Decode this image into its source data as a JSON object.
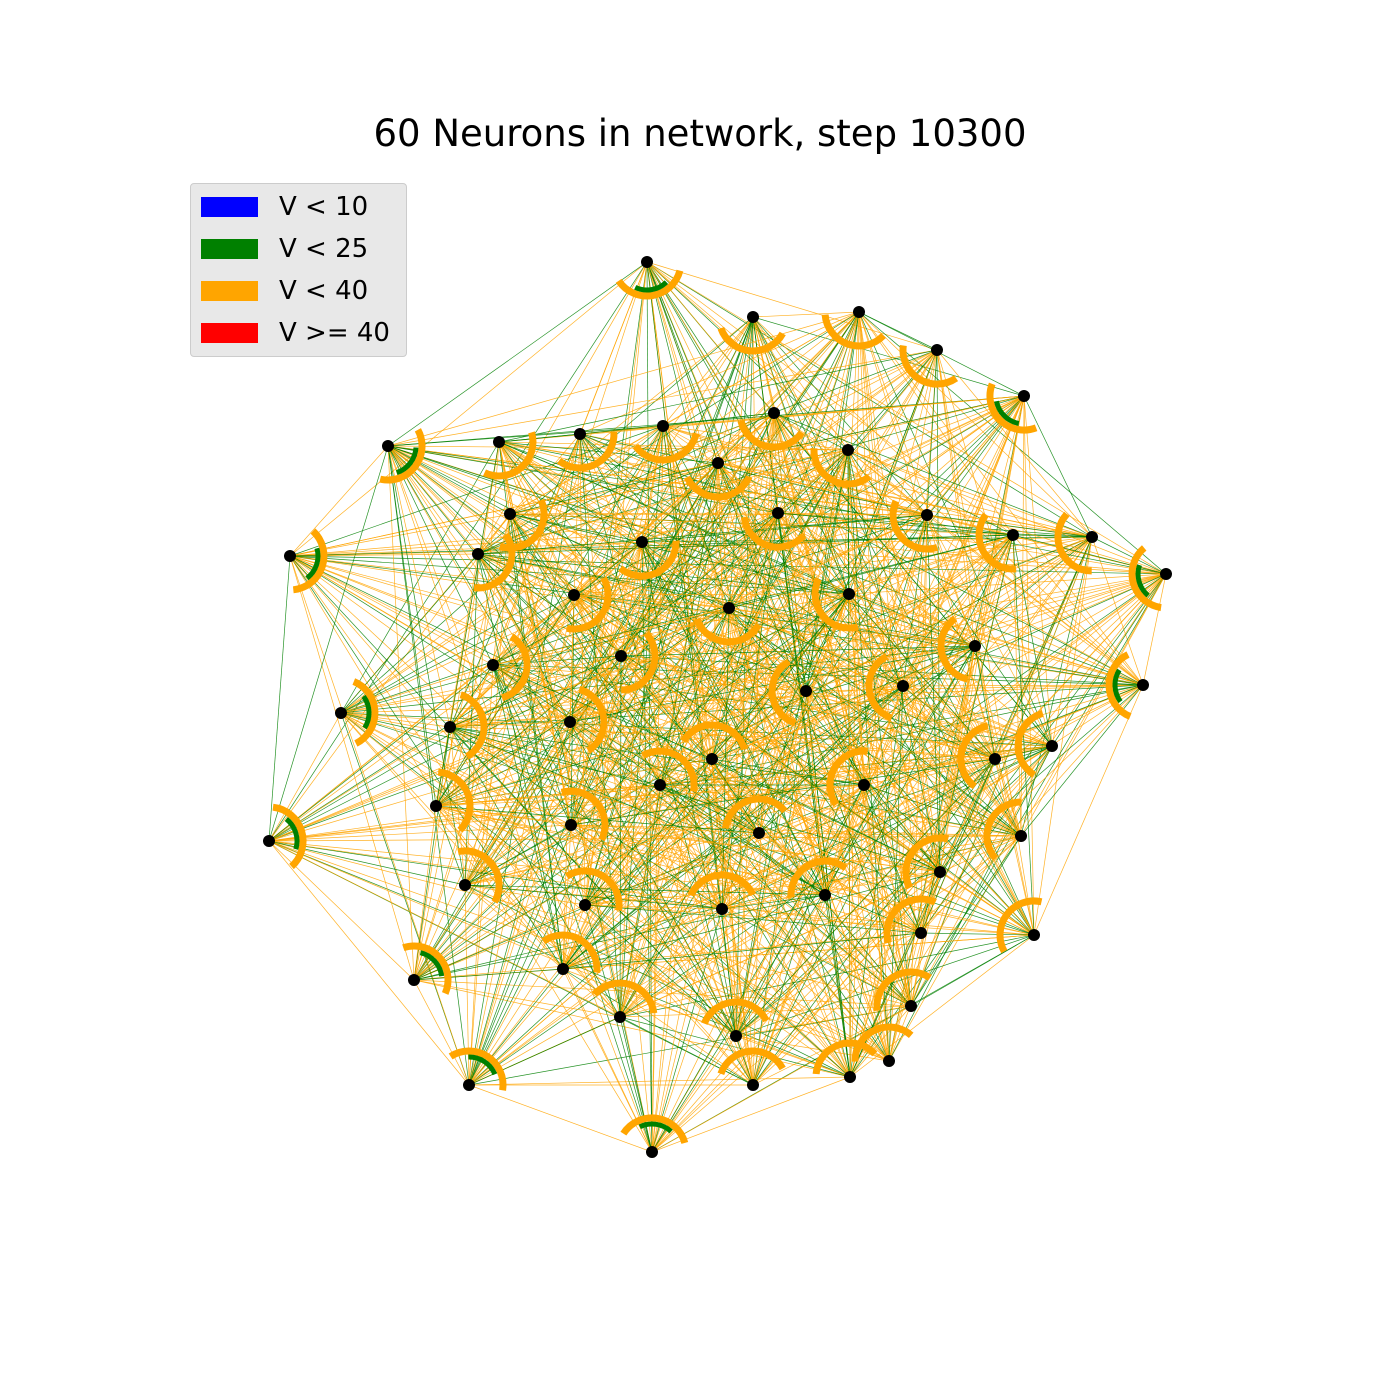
{
  "title": "60 Neurons in network, step 10300",
  "legend": {
    "items": [
      {
        "label": "V < 10",
        "color": "#0000ff"
      },
      {
        "label": "V < 25",
        "color": "#008000"
      },
      {
        "label": "V < 40",
        "color": "#ffa500"
      },
      {
        "label": "V >= 40",
        "color": "#ff0000"
      }
    ]
  },
  "network": {
    "neuron_count": 60,
    "node_color": "#000000",
    "edge_colors": [
      "#ffa500",
      "#008000"
    ]
  }
}
